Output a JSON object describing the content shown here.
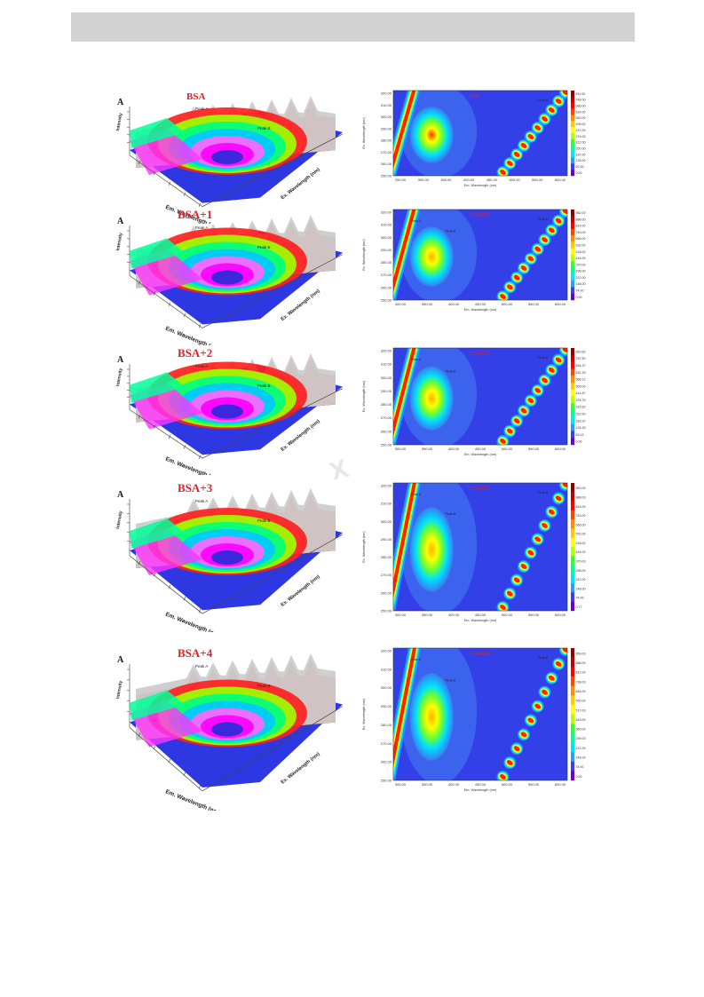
{
  "colors": {
    "title_red": "#e0202a",
    "surface_palette": [
      "#2b2bd9",
      "#ff00ff",
      "#00c8ff",
      "#00ff7f",
      "#ffff00",
      "#ff9900",
      "#ff2020",
      "#cccccc"
    ],
    "contour_background": "#3340e8"
  },
  "chart_data": [
    {
      "type": "3d-surface",
      "title": "BSA",
      "letter": "A",
      "zlabel": "Intensity",
      "xlabel": "Em. Wavelength (nm)",
      "ylabel": "Ex. Wavelength (nm)",
      "peaks": [
        "Peak A",
        "Peak B"
      ]
    },
    {
      "type": "heatmap",
      "title": "BSA",
      "xlabel": "Em. Wavelength (nm)",
      "ylabel": "Ex. Wavelength (nm)",
      "x_ticks": [
        "250.00",
        "300.00",
        "350.00",
        "400.00",
        "450.00",
        "500.00",
        "550.00",
        "600.00"
      ],
      "y_ticks": [
        "320.00",
        "310.00",
        "300.00",
        "290.00",
        "280.00",
        "270.00",
        "260.00",
        "250.00"
      ],
      "colorbar": [
        "811.00",
        "748.00",
        "686.00",
        "624.00",
        "562.00",
        "499.00",
        "437.00",
        "374.00",
        "312.00",
        "250.00",
        "187.00",
        "125.00",
        "62.00",
        "0.00"
      ],
      "peak_labels": [
        "Peak B"
      ]
    },
    {
      "type": "3d-surface",
      "title": "BSA+1",
      "letter": "A",
      "zlabel": "Intensity",
      "xlabel": "Em. Wavelength (nm)",
      "ylabel": "Ex. Wavelength (nm)",
      "peaks": [
        "Peak A",
        "Peak B"
      ]
    },
    {
      "type": "heatmap",
      "title": "BSA+EX1",
      "xlabel": "Em. Wavelength (nm)",
      "ylabel": "Ex. Wavelength (nm)",
      "x_ticks": [
        "300.00",
        "350.00",
        "400.00",
        "450.00",
        "500.00",
        "550.00",
        "600.00"
      ],
      "y_ticks": [
        "320.00",
        "310.00",
        "300.00",
        "290.00",
        "280.00",
        "270.00",
        "260.00",
        "250.00"
      ],
      "colorbar": [
        "962.00",
        "888.00",
        "814.00",
        "740.00",
        "666.00",
        "592.00",
        "518.00",
        "444.00",
        "370.00",
        "296.00",
        "222.00",
        "148.00",
        "74.00",
        "0.00"
      ],
      "peak_labels": [
        "Peak A",
        "Peak B"
      ]
    },
    {
      "type": "3d-surface",
      "title": "BSA+2",
      "letter": "A",
      "zlabel": "Intensity",
      "xlabel": "Em. Wavelength (nm)",
      "ylabel": "Ex. Wavelength (nm)",
      "peaks": [
        "Peak A",
        "Peak B"
      ]
    },
    {
      "type": "heatmap",
      "title": "BSA+EX2",
      "xlabel": "Em. Wavelength (nm)",
      "ylabel": "Ex. Wavelength (nm)",
      "x_ticks": [
        "300.00",
        "350.00",
        "400.00",
        "450.00",
        "500.00",
        "550.00",
        "600.00"
      ],
      "y_ticks": [
        "320.00",
        "310.00",
        "300.00",
        "290.00",
        "280.00",
        "270.00",
        "260.00",
        "250.00"
      ],
      "colorbar": [
        "820.62",
        "757.50",
        "694.37",
        "631.25",
        "568.12",
        "505.00",
        "441.87",
        "378.75",
        "315.62",
        "252.50",
        "189.37",
        "126.25",
        "63.12",
        "0.00"
      ],
      "peak_labels": [
        "Peak A",
        "Peak B"
      ]
    },
    {
      "type": "3d-surface",
      "title": "BSA+3",
      "letter": "A",
      "zlabel": "Intensity",
      "xlabel": "Em. Wavelength (nm)",
      "ylabel": "Ex. Wavelength (nm)",
      "peaks": [
        "Peak A",
        "Peak B"
      ]
    },
    {
      "type": "heatmap",
      "title": "BSA+EX3",
      "xlabel": "Em. Wavelength (nm)",
      "ylabel": "Ex. Wavelength (nm)",
      "x_ticks": [
        "300.00",
        "350.00",
        "400.00",
        "450.00",
        "500.00",
        "550.00",
        "600.00"
      ],
      "y_ticks": [
        "320.00",
        "310.00",
        "300.00",
        "290.00",
        "280.00",
        "270.00",
        "260.00",
        "250.00"
      ],
      "colorbar": [
        "962.00",
        "888.00",
        "814.00",
        "740.00",
        "666.00",
        "592.00",
        "518.00",
        "444.00",
        "370.00",
        "296.00",
        "222.00",
        "148.00",
        "74.00",
        "0.77"
      ],
      "peak_labels": [
        "Peak A",
        "Peak B"
      ]
    },
    {
      "type": "3d-surface",
      "title": "BSA+4",
      "letter": "A",
      "zlabel": "Intensity",
      "xlabel": "Em. Wavelength (nm)",
      "ylabel": "Ex. Wavelength (nm)",
      "peaks": [
        "Peak A",
        "Peak B"
      ]
    },
    {
      "type": "heatmap",
      "title": "BSA+EX4",
      "xlabel": "Em. Wavelength (nm)",
      "ylabel": "Ex. Wavelength (nm)",
      "x_ticks": [
        "300.00",
        "350.00",
        "400.00",
        "450.00",
        "500.00",
        "550.00",
        "600.00"
      ],
      "y_ticks": [
        "320.00",
        "310.00",
        "300.00",
        "290.00",
        "280.00",
        "270.00",
        "260.00",
        "250.00"
      ],
      "colorbar": [
        "959.00",
        "886.00",
        "812.00",
        "738.00",
        "664.00",
        "590.00",
        "517.00",
        "443.00",
        "369.00",
        "295.00",
        "221.00",
        "148.00",
        "74.00",
        "0.00"
      ],
      "peak_labels": [
        "Peak A",
        "Peak B"
      ]
    }
  ]
}
